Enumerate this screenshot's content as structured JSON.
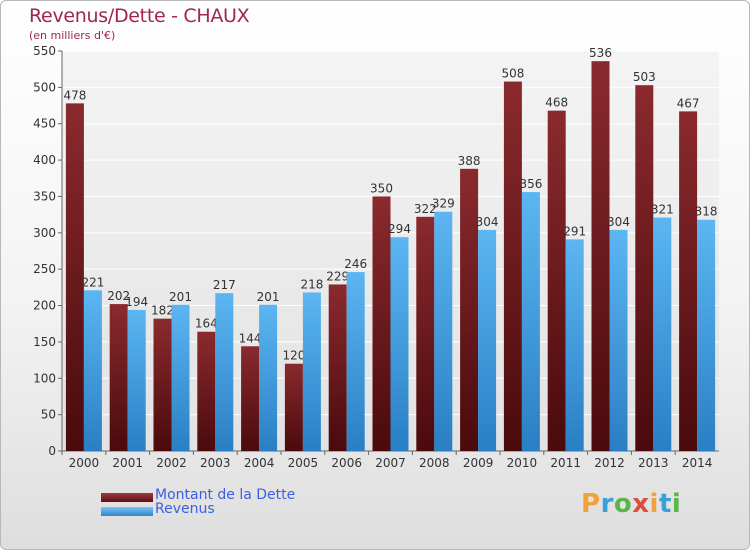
{
  "title": "Revenus/Dette - CHAUX",
  "subtitle": "(en milliers d'€)",
  "brand": {
    "text": "Proxiti",
    "letter_colors": [
      "#f2a23b",
      "#3aa0d8",
      "#5bb64a",
      "#e24b3c",
      "#f2a23b",
      "#3aa0d8",
      "#5bb64a"
    ]
  },
  "chart_data": {
    "type": "bar",
    "categories": [
      "2000",
      "2001",
      "2002",
      "2003",
      "2004",
      "2005",
      "2006",
      "2007",
      "2008",
      "2009",
      "2010",
      "2011",
      "2012",
      "2013",
      "2014"
    ],
    "series": [
      {
        "name": "Montant de la Dette",
        "color": "#7a2124",
        "values": [
          478,
          202,
          182,
          164,
          144,
          120,
          229,
          350,
          322,
          388,
          508,
          468,
          536,
          503,
          467
        ]
      },
      {
        "name": "Revenus",
        "color": "#4aa8e8",
        "values": [
          221,
          194,
          201,
          217,
          201,
          218,
          246,
          294,
          329,
          304,
          356,
          291,
          304,
          321,
          318
        ]
      }
    ],
    "ylim": [
      0,
      550
    ],
    "yticks": [
      0,
      50,
      100,
      150,
      200,
      250,
      300,
      350,
      400,
      450,
      500,
      550
    ],
    "grid": true,
    "legend_position": "bottom-left"
  }
}
